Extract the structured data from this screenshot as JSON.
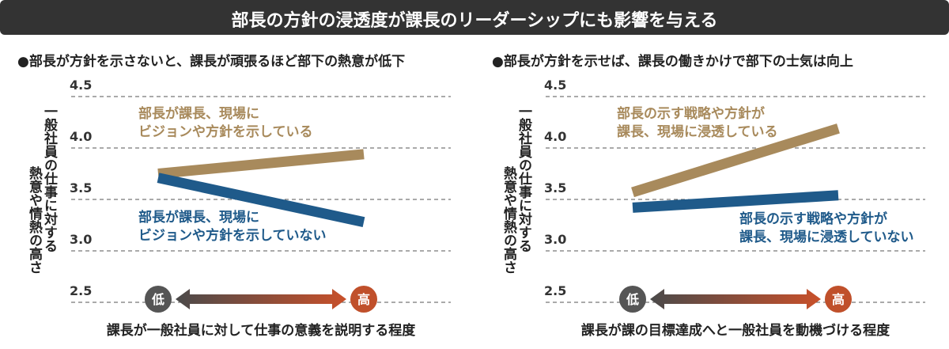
{
  "header": {
    "title": "部長の方針の浸透度が課長のリーダーシップにも影響を与える"
  },
  "chart_data": [
    {
      "type": "line",
      "subtitle": "●部長が方針を示さないと、課長が頑張るほど部下の熱意が低下",
      "ylabel": [
        "一般社員の仕事に対する",
        "熱意や情熱の高さ"
      ],
      "xlabel": "課長が一般社員に対して仕事の意義を説明する程度",
      "categories": [
        "低",
        "高"
      ],
      "ylim": [
        2.5,
        4.5
      ],
      "yticks": [
        2.5,
        {
          "value": 3,
          "label": "3.0"
        },
        3.5,
        {
          "value": 4,
          "label": "4.0"
        },
        4.5
      ],
      "grid": true,
      "series": [
        {
          "name": "部長が課長、現場に\nビジョンや方針を示している",
          "color": "#a88a5c",
          "values": [
            3.75,
            3.94
          ]
        },
        {
          "name": "部長が課長、現場に\nビジョンや方針を示していない",
          "color": "#1f5a8a",
          "values": [
            3.71,
            3.28
          ]
        }
      ]
    },
    {
      "type": "line",
      "subtitle": "●部長が方針を示せば、課長の働きかけで部下の士気は向上",
      "ylabel": [
        "一般社員の仕事に対する",
        "熱意や情熱の高さ"
      ],
      "xlabel": "課長が課の目標達成へと一般社員を動機づける程度",
      "categories": [
        "低",
        "高"
      ],
      "ylim": [
        2.5,
        4.5
      ],
      "yticks": [
        2.5,
        {
          "value": 3,
          "label": "3.0"
        },
        3.5,
        {
          "value": 4,
          "label": "4.0"
        },
        4.5
      ],
      "grid": true,
      "series": [
        {
          "name": "部長の示す戦略や方針が\n課長、現場に浸透している",
          "color": "#a88a5c",
          "values": [
            3.57,
            4.19
          ]
        },
        {
          "name": "部長の示す戦略や方針が\n課長、現場に浸透していない",
          "color": "#1f5a8a",
          "values": [
            3.42,
            3.54
          ]
        }
      ]
    }
  ]
}
